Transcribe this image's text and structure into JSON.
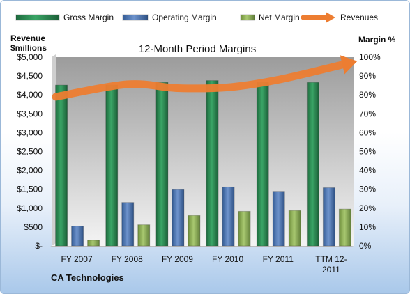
{
  "chart_data": {
    "type": "bar",
    "title": "12-Month Period Margins",
    "company": "CA Technologies",
    "left_axis_label": [
      "Revenue",
      "$millions"
    ],
    "right_axis_label": "Margin %",
    "categories": [
      "FY 2007",
      "FY 2008",
      "FY 2009",
      "FY 2010",
      "FY 2011",
      "TTM 12-2011"
    ],
    "category_labels": [
      [
        "FY 2007"
      ],
      [
        "FY 2008"
      ],
      [
        "FY 2009"
      ],
      [
        "FY 2010"
      ],
      [
        "FY 2011"
      ],
      [
        "TTM 12-",
        "2011"
      ]
    ],
    "left_ticks": [
      "$-",
      "$500",
      "$1,000",
      "$1,500",
      "$2,000",
      "$2,500",
      "$3,000",
      "$3,500",
      "$4,000",
      "$4,500",
      "$5,000"
    ],
    "right_ticks": [
      "0%",
      "10%",
      "20%",
      "30%",
      "40%",
      "50%",
      "60%",
      "70%",
      "80%",
      "90%",
      "100%"
    ],
    "ylim_left": [
      0,
      5000
    ],
    "ylim_right": [
      0,
      100
    ],
    "grid": false,
    "legend_position": "top",
    "series": [
      {
        "name": "Gross Margin",
        "axis": "right",
        "kind": "bar",
        "color": "#2e8b57",
        "values": [
          85.2,
          85.2,
          86.6,
          87.6,
          86.6,
          86.6
        ]
      },
      {
        "name": "Operating Margin",
        "axis": "right",
        "kind": "bar",
        "color": "#4f79b8",
        "values": [
          10.5,
          23.0,
          29.8,
          31.2,
          28.9,
          30.8
        ]
      },
      {
        "name": "Net Margin",
        "axis": "right",
        "kind": "bar",
        "color": "#8fb35a",
        "values": [
          3.0,
          11.2,
          16.1,
          18.3,
          18.7,
          19.5
        ]
      },
      {
        "name": "Revenues",
        "axis": "left",
        "kind": "arrow-line",
        "color": "#ed7d31",
        "values": [
          3950,
          4280,
          4180,
          4200,
          4400,
          4800
        ]
      }
    ]
  }
}
